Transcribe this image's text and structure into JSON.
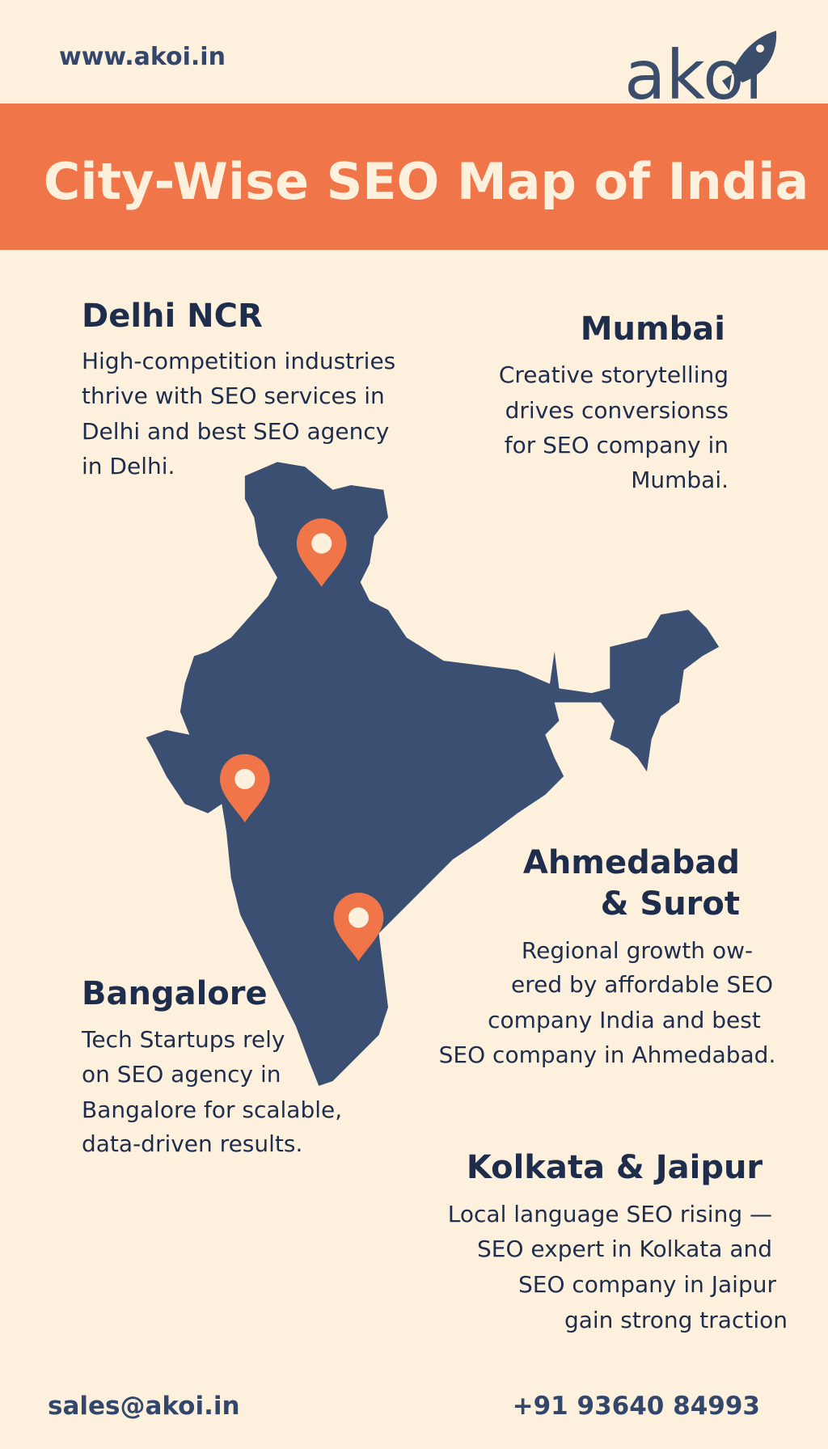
{
  "header": {
    "website": "www.akoi.in",
    "logo": "akoi"
  },
  "banner": {
    "title": "City-Wise SEO Map of India"
  },
  "sections": [
    {
      "title": "Delhi NCR",
      "lines": [
        "High-competition industries",
        "thrive with SEO services in",
        "Delhi and best SEO agency",
        "in Delhi."
      ]
    },
    {
      "title": "Mumbai",
      "lines": [
        "Creative storytelling",
        "drives conversionss",
        "for SEO company in",
        "Mumbai."
      ]
    },
    {
      "title": [
        "Ahmedabad",
        "& Surot"
      ],
      "lines": [
        "Regional growth ow-",
        "ered by affordable SEO",
        "company India and best",
        "SEO company in Ahmedabad."
      ]
    },
    {
      "title": "Bangalore",
      "lines": [
        "Tech Startups rely",
        "on SEO agency in",
        "Bangalore for scalable,",
        "data-driven results."
      ]
    },
    {
      "title": "Kolkata & Jaipur",
      "lines": [
        "Local language SEO rising —",
        "SEO expert in Kolkata and",
        "SEO company in Jaipur",
        "gain strong traction"
      ]
    }
  ],
  "footer": {
    "email": "sales@akoi.in",
    "phone": "+91 93640 84993"
  }
}
